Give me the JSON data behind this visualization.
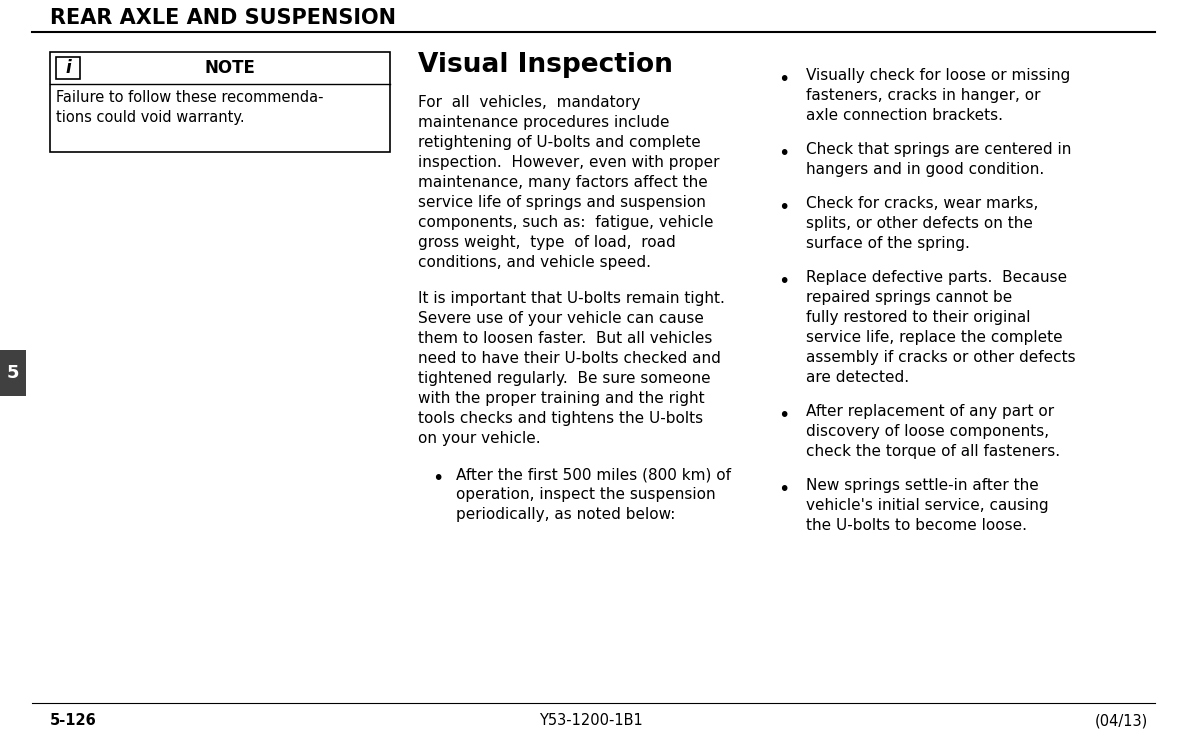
{
  "header_title": "REAR AXLE AND SUSPENSION",
  "section_number": "5",
  "page_number": "5-126",
  "doc_number": "Y53-1200-1B1",
  "date": "(04/13)",
  "note_title": "NOTE",
  "note_line1": "Failure to follow these recommenda-",
  "note_line2": "tions could void warranty.",
  "visual_inspection_title": "Visual Inspection",
  "para1_lines": [
    "For  all  vehicles,  mandatory",
    "maintenance procedures include",
    "retightening of U-bolts and complete",
    "inspection.  However, even with proper",
    "maintenance, many factors affect the",
    "service life of springs and suspension",
    "components, such as:  fatigue, vehicle",
    "gross weight,  type  of load,  road",
    "conditions, and vehicle speed."
  ],
  "para2_lines": [
    "It is important that U-bolts remain tight.",
    "Severe use of your vehicle can cause",
    "them to loosen faster.  But all vehicles",
    "need to have their U-bolts checked and",
    "tightened regularly.  Be sure someone",
    "with the proper training and the right",
    "tools checks and tightens the U-bolts",
    "on your vehicle."
  ],
  "center_bullet_lines": [
    "After the first 500 miles (800 km) of",
    "operation, inspect the suspension",
    "periodically, as noted below:"
  ],
  "right_bullet_groups": [
    [
      "Visually check for loose or missing",
      "fasteners, cracks in hanger, or",
      "axle connection brackets."
    ],
    [
      "Check that springs are centered in",
      "hangers and in good condition."
    ],
    [
      "Check for cracks, wear marks,",
      "splits, or other defects on the",
      "surface of the spring."
    ],
    [
      "Replace defective parts.  Because",
      "repaired springs cannot be",
      "fully restored to their original",
      "service life, replace the complete",
      "assembly if cracks or other defects",
      "are detected."
    ],
    [
      "After replacement of any part or",
      "discovery of loose components,",
      "check the torque of all fasteners."
    ],
    [
      "New springs settle-in after the",
      "vehicle's initial service, causing",
      "the U-bolts to become loose."
    ]
  ],
  "bg_color": "#ffffff",
  "text_color": "#000000",
  "section_tab_color": "#404040",
  "section_tab_text_color": "#ffffff"
}
